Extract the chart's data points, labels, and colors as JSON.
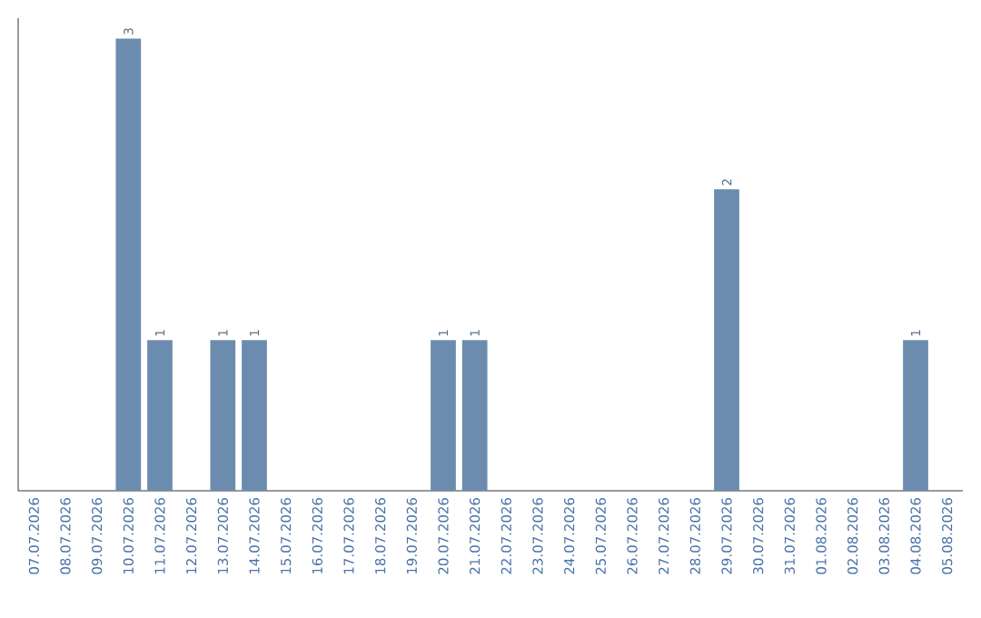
{
  "chart_data": {
    "type": "bar",
    "categories": [
      "07.07.2026",
      "08.07.2026",
      "09.07.2026",
      "10.07.2026",
      "11.07.2026",
      "12.07.2026",
      "13.07.2026",
      "14.07.2026",
      "15.07.2026",
      "16.07.2026",
      "17.07.2026",
      "18.07.2026",
      "19.07.2026",
      "20.07.2026",
      "21.07.2026",
      "22.07.2026",
      "23.07.2026",
      "24.07.2026",
      "25.07.2026",
      "26.07.2026",
      "27.07.2026",
      "28.07.2026",
      "29.07.2026",
      "30.07.2026",
      "31.07.2026",
      "01.08.2026",
      "02.08.2026",
      "03.08.2026",
      "04.08.2026",
      "05.08.2026"
    ],
    "values": [
      0,
      0,
      0,
      3,
      1,
      0,
      1,
      1,
      0,
      0,
      0,
      0,
      0,
      1,
      1,
      0,
      0,
      0,
      0,
      0,
      0,
      0,
      2,
      0,
      0,
      0,
      0,
      0,
      1,
      0
    ],
    "value_labels": [
      null,
      null,
      null,
      "3",
      "1",
      null,
      "1",
      "1",
      null,
      null,
      null,
      null,
      null,
      "1",
      "1",
      null,
      null,
      null,
      null,
      null,
      null,
      null,
      "2",
      null,
      null,
      null,
      null,
      null,
      "1",
      null
    ],
    "color": "#6b8cae"
  }
}
